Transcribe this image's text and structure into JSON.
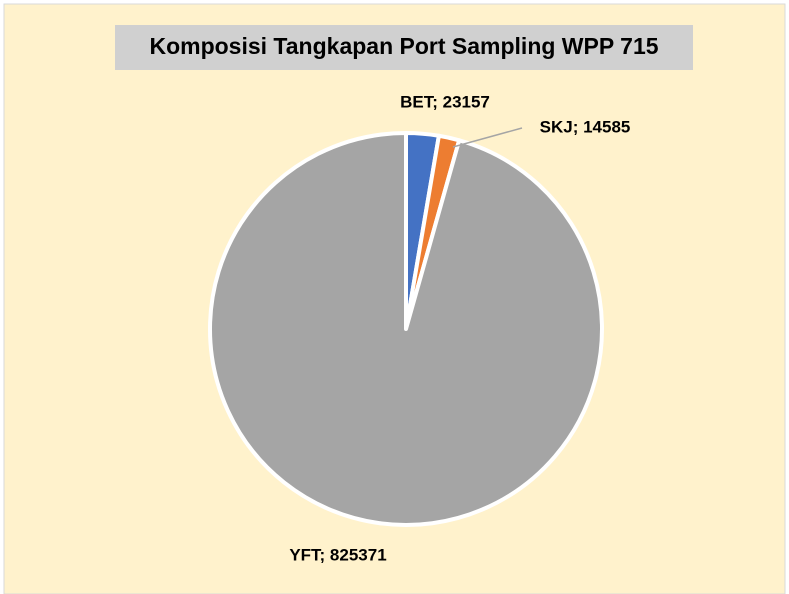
{
  "chart_data": {
    "type": "pie",
    "title": "Komposisi Tangkapan Port Sampling WPP 715",
    "values": [
      23157,
      14585,
      825371
    ],
    "value_labels": [
      "BET; 23157",
      "SKJ; 14585",
      "YFT; 825371"
    ],
    "colors": [
      "#4472c4",
      "#ed7d31",
      "#a5a5a5"
    ]
  }
}
